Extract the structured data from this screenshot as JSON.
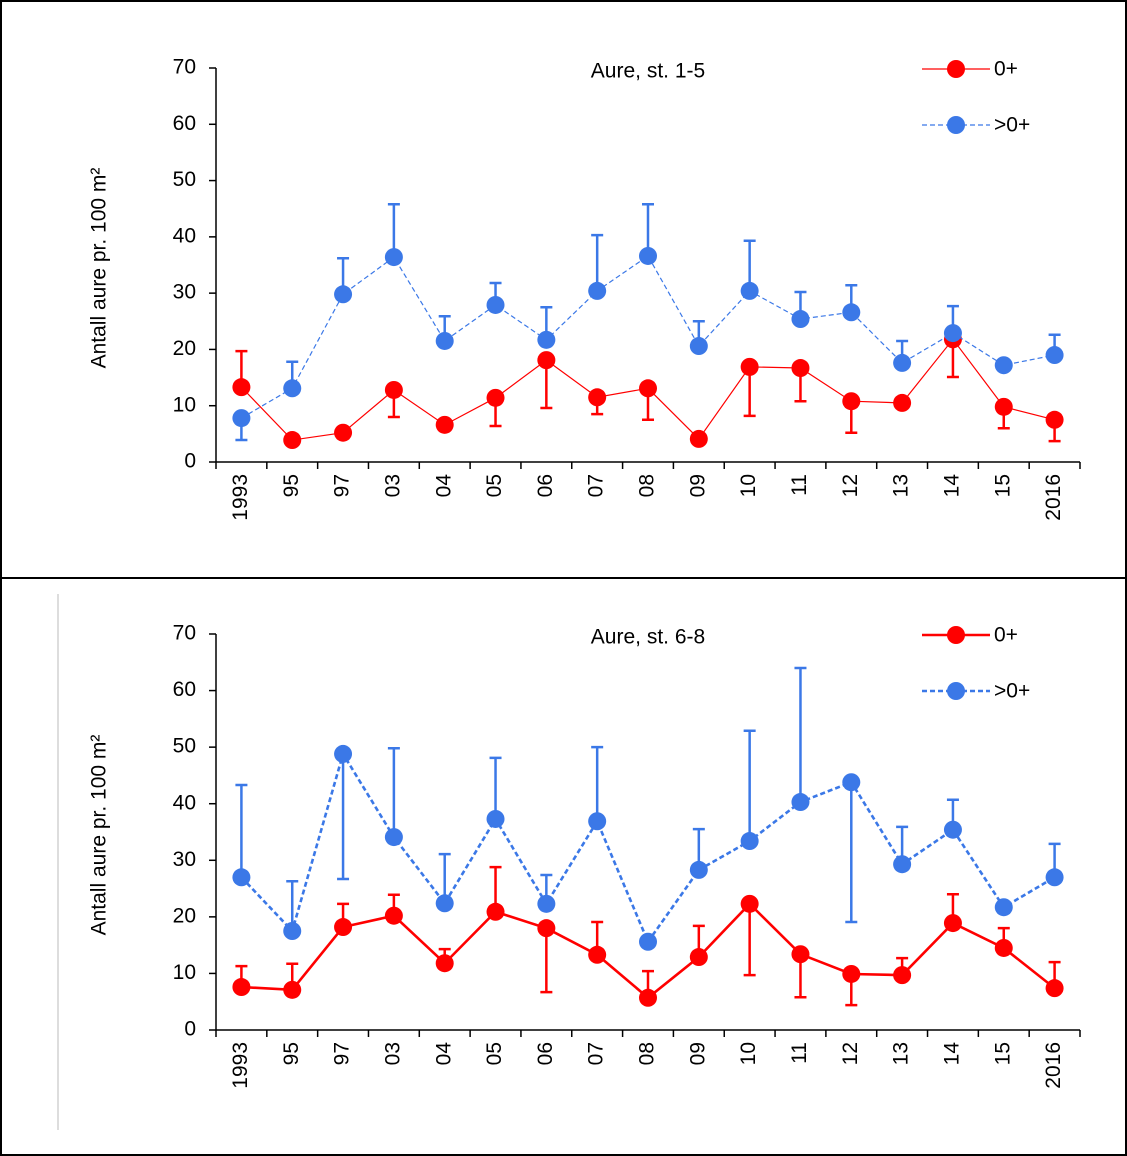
{
  "chart_data": [
    {
      "type": "line",
      "title": "Aure, st. 1-5",
      "y_label": "Antall aure pr. 100 m²",
      "categories": [
        "1993",
        "95",
        "97",
        "03",
        "04",
        "05",
        "06",
        "07",
        "08",
        "09",
        "10",
        "11",
        "12",
        "13",
        "14",
        "15",
        "2016"
      ],
      "ylim": [
        0,
        70
      ],
      "yticks": [
        0,
        10,
        20,
        30,
        40,
        50,
        60,
        70
      ],
      "legend": "upper right",
      "series": [
        {
          "name": "0+",
          "color": "#ff0000",
          "line_style": "solid",
          "line_width": 1.2,
          "values": [
            13.3,
            3.9,
            5.2,
            12.8,
            6.6,
            11.4,
            18.1,
            11.5,
            13.1,
            4.1,
            16.9,
            16.7,
            10.8,
            10.5,
            21.8,
            9.8,
            7.5
          ],
          "error_up": [
            6.4,
            null,
            null,
            null,
            null,
            null,
            null,
            null,
            null,
            null,
            null,
            null,
            null,
            null,
            null,
            null,
            null
          ],
          "error_down": [
            null,
            null,
            null,
            4.8,
            null,
            5,
            8.5,
            3,
            5.6,
            null,
            8.7,
            5.9,
            5.6,
            null,
            6.7,
            3.8,
            3.8
          ]
        },
        {
          "name": ">0+",
          "color": "#3b78e7",
          "line_style": "dash",
          "line_width": 1.2,
          "values": [
            7.8,
            13.1,
            29.8,
            36.4,
            21.5,
            27.9,
            21.7,
            30.4,
            36.6,
            20.6,
            30.4,
            25.4,
            26.6,
            17.6,
            22.9,
            17.2,
            19
          ],
          "error_up": [
            null,
            4.7,
            6.4,
            9.4,
            4.4,
            3.9,
            5.8,
            9.9,
            9.2,
            4.4,
            8.9,
            4.8,
            4.8,
            3.9,
            4.8,
            null,
            3.6
          ],
          "error_down": [
            3.9,
            null,
            null,
            null,
            null,
            null,
            null,
            null,
            null,
            null,
            null,
            null,
            null,
            null,
            null,
            null,
            null
          ]
        }
      ]
    },
    {
      "type": "line",
      "title": "Aure, st. 6-8",
      "y_label": "Antall aure pr. 100 m²",
      "categories": [
        "1993",
        "95",
        "97",
        "03",
        "04",
        "05",
        "06",
        "07",
        "08",
        "09",
        "10",
        "11",
        "12",
        "13",
        "14",
        "15",
        "2016"
      ],
      "ylim": [
        0,
        70
      ],
      "yticks": [
        0,
        10,
        20,
        30,
        40,
        50,
        60,
        70
      ],
      "legend": "upper right",
      "series": [
        {
          "name": "0+",
          "color": "#ff0000",
          "line_style": "solid",
          "line_width": 2.6,
          "values": [
            7.6,
            7.1,
            18.2,
            20.2,
            11.8,
            20.9,
            18,
            13.3,
            5.7,
            12.9,
            22.3,
            13.4,
            9.9,
            9.7,
            18.9,
            14.5,
            7.4
          ],
          "error_up": [
            3.7,
            4.6,
            4.1,
            3.7,
            2.5,
            7.9,
            null,
            5.8,
            4.7,
            5.5,
            null,
            null,
            null,
            3,
            5.1,
            3.5,
            4.6
          ],
          "error_down": [
            null,
            null,
            null,
            null,
            null,
            null,
            11.3,
            null,
            null,
            null,
            12.6,
            7.6,
            5.5,
            null,
            null,
            null,
            null
          ]
        },
        {
          "name": ">0+",
          "color": "#3b78e7",
          "line_style": "dash",
          "line_width": 2.6,
          "values": [
            27,
            17.5,
            48.8,
            34.1,
            22.4,
            37.3,
            22.3,
            36.9,
            15.6,
            28.3,
            33.4,
            40.3,
            43.8,
            29.3,
            35.4,
            21.7,
            27
          ],
          "error_up": [
            16.3,
            8.8,
            null,
            15.7,
            8.7,
            10.8,
            5.1,
            13.1,
            null,
            7.2,
            19.5,
            23.7,
            null,
            6.6,
            5.3,
            null,
            5.9
          ],
          "error_down": [
            null,
            null,
            22.1,
            null,
            null,
            null,
            null,
            null,
            null,
            null,
            null,
            null,
            24.7,
            null,
            null,
            null,
            null
          ]
        }
      ]
    }
  ]
}
